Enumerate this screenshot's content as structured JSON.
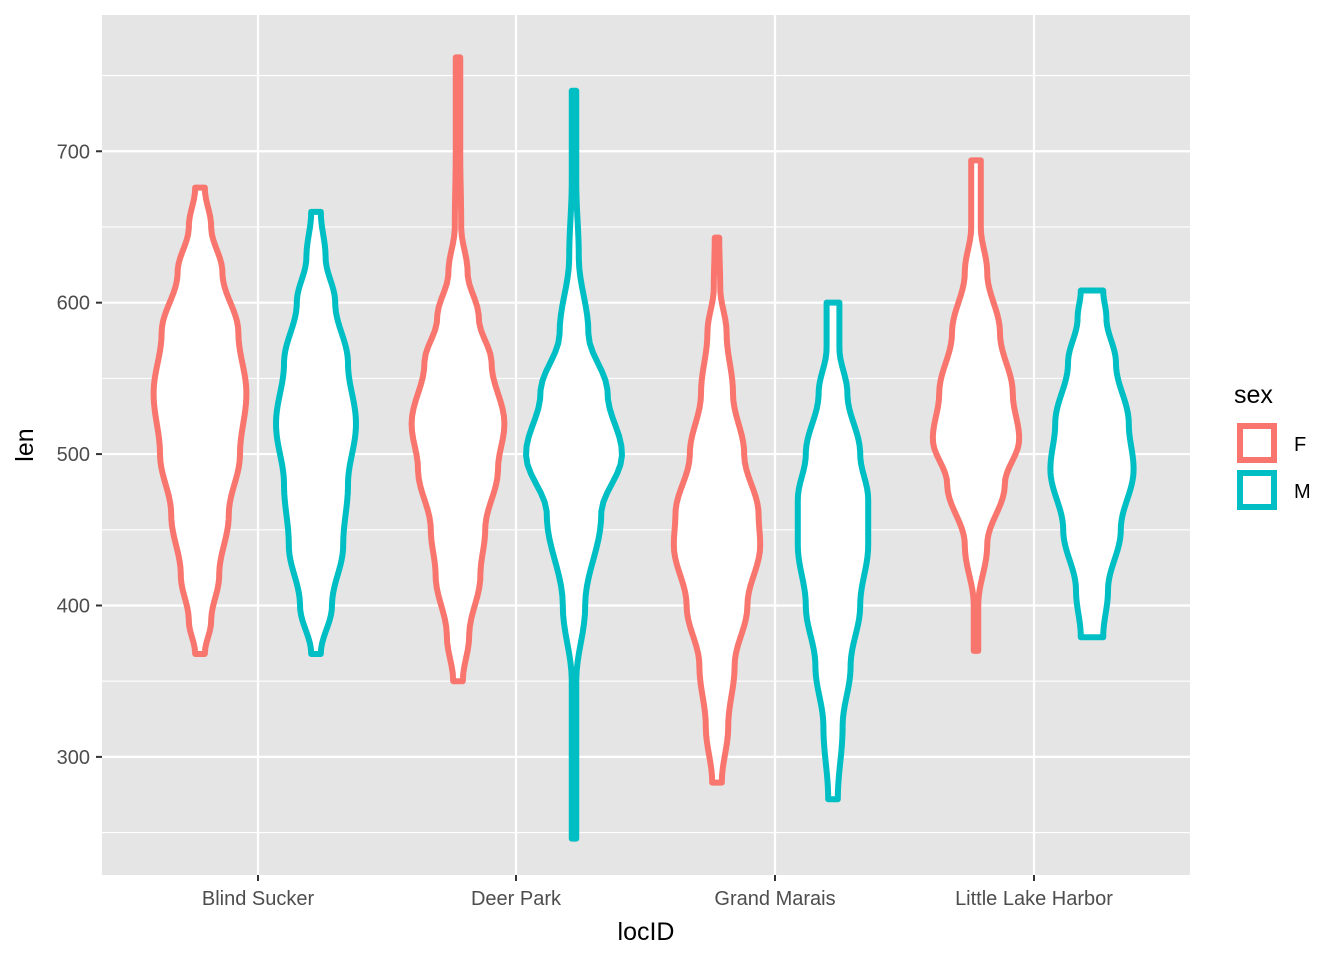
{
  "colors": {
    "panel_background": "#e5e5e5",
    "grid": "#ffffff",
    "F": "#f8766d",
    "M": "#00bfc4",
    "violin_fill": "#ffffff"
  },
  "chart_data": {
    "type": "violin",
    "title": "",
    "xlabel": "locID",
    "ylabel": "len",
    "ylim": [
      222,
      790
    ],
    "yticks": [
      300,
      400,
      500,
      600,
      700
    ],
    "ytick_labels": [
      "300",
      "400",
      "500",
      "600",
      "700"
    ],
    "categories": [
      "Blind Sucker",
      "Deer Park",
      "Grand Marais",
      "Little Lake Harbor"
    ],
    "grid": true,
    "legend": {
      "title": "sex",
      "position": "right",
      "entries": [
        {
          "key": "F",
          "label": "F"
        },
        {
          "key": "M",
          "label": "M"
        }
      ]
    },
    "series": [
      {
        "name": "F",
        "violins": [
          {
            "category": "Blind Sucker",
            "min": 368,
            "max": 676,
            "profile": [
              [
                368,
                0.03
              ],
              [
                390,
                0.07
              ],
              [
                420,
                0.12
              ],
              [
                460,
                0.18
              ],
              [
                500,
                0.25
              ],
              [
                540,
                0.29
              ],
              [
                580,
                0.24
              ],
              [
                620,
                0.14
              ],
              [
                650,
                0.07
              ],
              [
                676,
                0.03
              ]
            ]
          },
          {
            "category": "Deer Park",
            "min": 350,
            "max": 762,
            "profile": [
              [
                350,
                0.03
              ],
              [
                380,
                0.07
              ],
              [
                420,
                0.14
              ],
              [
                450,
                0.17
              ],
              [
                490,
                0.25
              ],
              [
                520,
                0.29
              ],
              [
                560,
                0.21
              ],
              [
                590,
                0.13
              ],
              [
                620,
                0.06
              ],
              [
                650,
                0.02
              ],
              [
                700,
                0.014
              ],
              [
                762,
                0.014
              ]
            ]
          },
          {
            "category": "Grand Marais",
            "min": 283,
            "max": 643,
            "profile": [
              [
                283,
                0.03
              ],
              [
                320,
                0.07
              ],
              [
                360,
                0.11
              ],
              [
                400,
                0.19
              ],
              [
                440,
                0.27
              ],
              [
                460,
                0.26
              ],
              [
                500,
                0.17
              ],
              [
                540,
                0.1
              ],
              [
                580,
                0.06
              ],
              [
                610,
                0.02
              ],
              [
                643,
                0.014
              ]
            ]
          },
          {
            "category": "Little Lake Harbor",
            "min": 370,
            "max": 694,
            "profile": [
              [
                370,
                0.014
              ],
              [
                400,
                0.014
              ],
              [
                440,
                0.07
              ],
              [
                480,
                0.18
              ],
              [
                510,
                0.27
              ],
              [
                540,
                0.23
              ],
              [
                580,
                0.15
              ],
              [
                620,
                0.07
              ],
              [
                650,
                0.03
              ],
              [
                694,
                0.03
              ]
            ]
          }
        ]
      },
      {
        "name": "M",
        "violins": [
          {
            "category": "Blind Sucker",
            "min": 368,
            "max": 660,
            "profile": [
              [
                368,
                0.03
              ],
              [
                400,
                0.1
              ],
              [
                440,
                0.17
              ],
              [
                480,
                0.2
              ],
              [
                520,
                0.25
              ],
              [
                560,
                0.2
              ],
              [
                600,
                0.12
              ],
              [
                630,
                0.06
              ],
              [
                660,
                0.03
              ]
            ]
          },
          {
            "category": "Deer Park",
            "min": 246,
            "max": 740,
            "profile": [
              [
                246,
                0.014
              ],
              [
                300,
                0.014
              ],
              [
                350,
                0.014
              ],
              [
                400,
                0.07
              ],
              [
                460,
                0.17
              ],
              [
                500,
                0.3
              ],
              [
                540,
                0.21
              ],
              [
                580,
                0.09
              ],
              [
                630,
                0.03
              ],
              [
                680,
                0.014
              ],
              [
                740,
                0.014
              ]
            ]
          },
          {
            "category": "Grand Marais",
            "min": 272,
            "max": 600,
            "profile": [
              [
                272,
                0.03
              ],
              [
                320,
                0.06
              ],
              [
                360,
                0.11
              ],
              [
                400,
                0.17
              ],
              [
                440,
                0.22
              ],
              [
                470,
                0.22
              ],
              [
                500,
                0.17
              ],
              [
                540,
                0.09
              ],
              [
                570,
                0.04
              ],
              [
                600,
                0.04
              ]
            ]
          },
          {
            "category": "Little Lake Harbor",
            "min": 379,
            "max": 608,
            "profile": [
              [
                379,
                0.07
              ],
              [
                410,
                0.1
              ],
              [
                450,
                0.18
              ],
              [
                490,
                0.26
              ],
              [
                520,
                0.23
              ],
              [
                560,
                0.15
              ],
              [
                590,
                0.09
              ],
              [
                608,
                0.07
              ]
            ]
          }
        ]
      }
    ]
  }
}
